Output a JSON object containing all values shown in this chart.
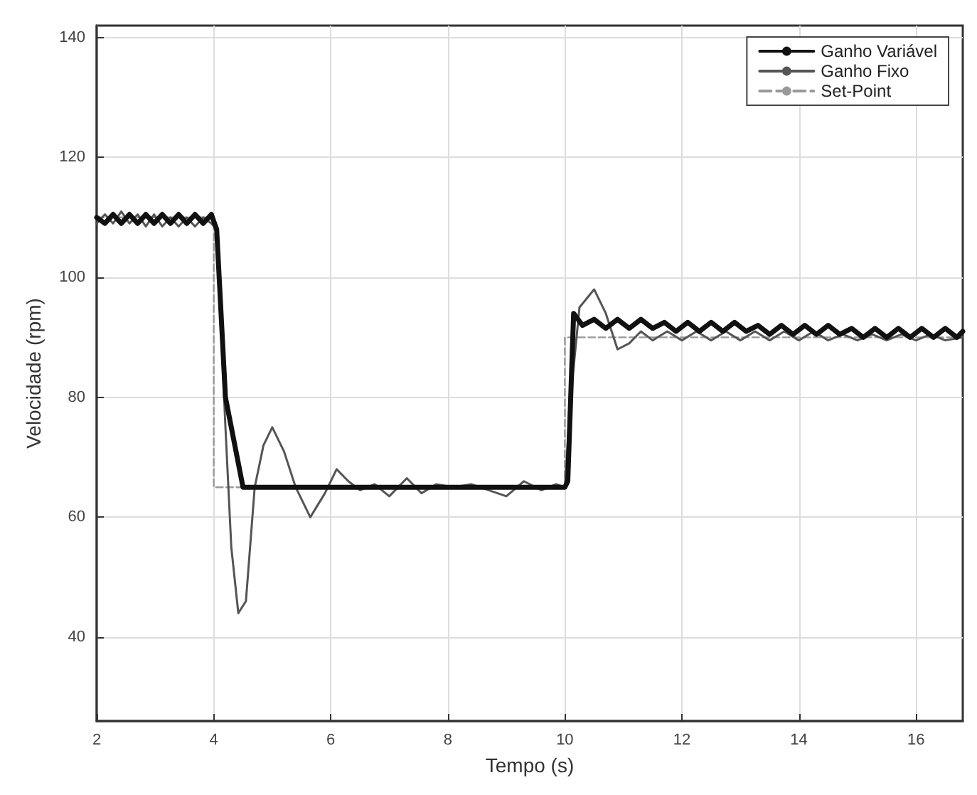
{
  "chart_data": {
    "type": "line",
    "xlabel": "Tempo (s)",
    "ylabel": "Velocidade (rpm)",
    "xlim": [
      2,
      16.8
    ],
    "ylim": [
      26,
      142
    ],
    "xticks": [
      2,
      4,
      6,
      8,
      10,
      12,
      14,
      16
    ],
    "yticks": [
      40,
      60,
      80,
      100,
      120,
      140
    ],
    "grid": true,
    "legend": "top right",
    "marker": "none",
    "series": [
      {
        "name": "Ganho Variável",
        "color": "#111111",
        "line_style": "solid",
        "x": [
          2,
          2.14,
          2.28,
          2.42,
          2.56,
          2.7,
          2.84,
          2.98,
          3.12,
          3.26,
          3.4,
          3.54,
          3.68,
          3.82,
          3.96,
          4.05,
          4.2,
          4.5,
          5,
          6,
          7,
          8,
          9,
          10,
          10.05,
          10.15,
          10.3,
          10.5,
          10.7,
          10.9,
          11.1,
          11.3,
          11.5,
          11.7,
          11.9,
          12.1,
          12.3,
          12.5,
          12.7,
          12.9,
          13.1,
          13.3,
          13.5,
          13.7,
          13.9,
          14.1,
          14.3,
          14.5,
          14.7,
          14.9,
          15.1,
          15.3,
          15.5,
          15.7,
          15.9,
          16.1,
          16.3,
          16.5,
          16.7,
          16.8
        ],
        "values": [
          110,
          109,
          110.5,
          109,
          110.5,
          109,
          110.5,
          109,
          110.5,
          109,
          110.5,
          109,
          110.5,
          109,
          110.5,
          108,
          80,
          65,
          65,
          65,
          65,
          65,
          65,
          65,
          66,
          94,
          92,
          93,
          91.5,
          93,
          91.5,
          93,
          91.5,
          92.5,
          91,
          92.5,
          91,
          92.5,
          91,
          92.5,
          91,
          92,
          90.5,
          92,
          90.5,
          92,
          90.5,
          92,
          90.5,
          91.5,
          90,
          91.5,
          90,
          91.5,
          90,
          91.5,
          90,
          91.5,
          90,
          91
        ]
      },
      {
        "name": "Ganho Fixo",
        "color": "#555555",
        "line_style": "solid",
        "x": [
          2,
          2.14,
          2.28,
          2.42,
          2.56,
          2.7,
          2.84,
          2.98,
          3.12,
          3.26,
          3.4,
          3.54,
          3.68,
          3.82,
          3.96,
          4.05,
          4.2,
          4.3,
          4.42,
          4.55,
          4.7,
          4.85,
          5.0,
          5.2,
          5.4,
          5.65,
          5.9,
          6.1,
          6.3,
          6.5,
          6.75,
          7.0,
          7.3,
          7.55,
          7.8,
          8.1,
          8.4,
          8.7,
          9.0,
          9.3,
          9.6,
          9.85,
          10,
          10.1,
          10.25,
          10.5,
          10.7,
          10.9,
          11.1,
          11.3,
          11.5,
          11.75,
          12,
          12.25,
          12.5,
          12.75,
          13,
          13.25,
          13.5,
          13.75,
          14,
          14.25,
          14.5,
          14.75,
          15,
          15.25,
          15.5,
          15.75,
          16,
          16.25,
          16.5,
          16.8
        ],
        "values": [
          109,
          110.5,
          109,
          111,
          109,
          110.5,
          108.5,
          110.5,
          108.5,
          110,
          108.5,
          110,
          108.5,
          110,
          109,
          108,
          75,
          55,
          44,
          46,
          65,
          72,
          75,
          71,
          65,
          60,
          64,
          68,
          66,
          64.5,
          65.5,
          63.5,
          66.5,
          64,
          65.5,
          65,
          65.5,
          64.5,
          63.5,
          66,
          64.5,
          65.5,
          65,
          80,
          95,
          98,
          94,
          88,
          89,
          91,
          89.5,
          91,
          89.5,
          91,
          89.5,
          91,
          89.5,
          91,
          89.5,
          91,
          89.5,
          91,
          89.5,
          90.5,
          89.5,
          90.5,
          89.5,
          90.5,
          89.5,
          90.5,
          89.5,
          90
        ]
      },
      {
        "name": "Set-Point",
        "type": "step",
        "color": "#999999",
        "line_style": "dashed",
        "x": [
          2,
          4,
          10,
          16.8
        ],
        "values": [
          110,
          65,
          90,
          90
        ]
      }
    ]
  }
}
